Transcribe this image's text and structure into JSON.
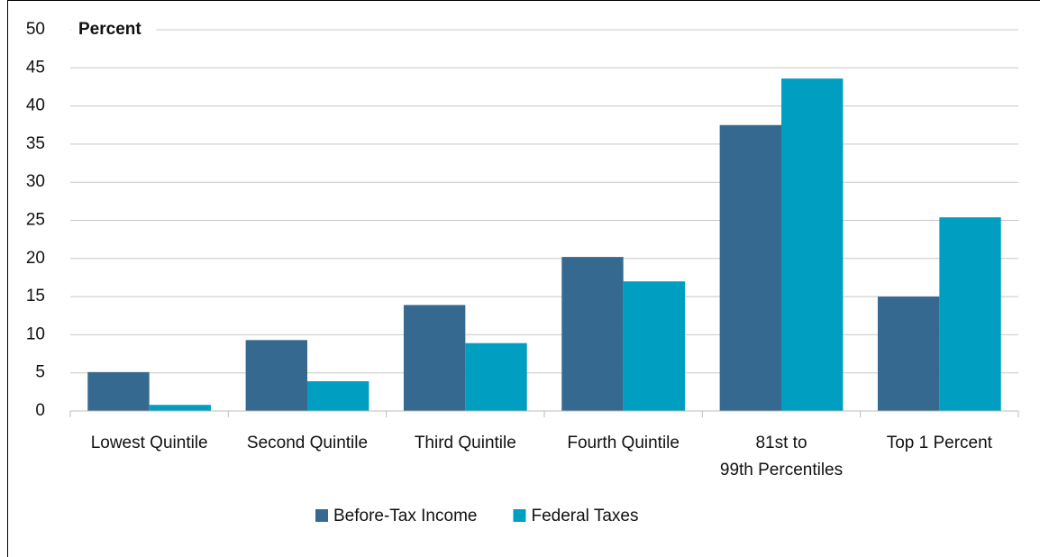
{
  "chart_data": {
    "type": "bar",
    "y_label": "Percent",
    "categories": [
      "Lowest Quintile",
      "Second Quintile",
      "Third Quintile",
      "Fourth Quintile",
      "81st to 99th Percentiles",
      "Top 1 Percent"
    ],
    "series": [
      {
        "name": "Before-Tax Income",
        "color": "#35698f",
        "values": [
          5.1,
          9.3,
          13.9,
          20.2,
          37.5,
          15.0
        ]
      },
      {
        "name": "Federal Taxes",
        "color": "#009fc1",
        "values": [
          0.8,
          3.9,
          8.9,
          17.0,
          43.6,
          25.4
        ]
      }
    ],
    "ylim": [
      0,
      50
    ],
    "yticks": [
      0,
      5,
      10,
      15,
      20,
      25,
      30,
      35,
      40,
      45,
      50
    ],
    "grid": true,
    "legend": "bottom"
  }
}
